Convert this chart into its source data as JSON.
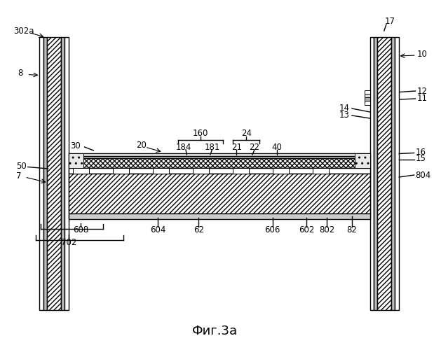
{
  "title": "Фиг.3a",
  "bg_color": "#ffffff",
  "line_color": "#000000",
  "fig_width": 6.19,
  "fig_height": 5.0,
  "dpi": 100
}
